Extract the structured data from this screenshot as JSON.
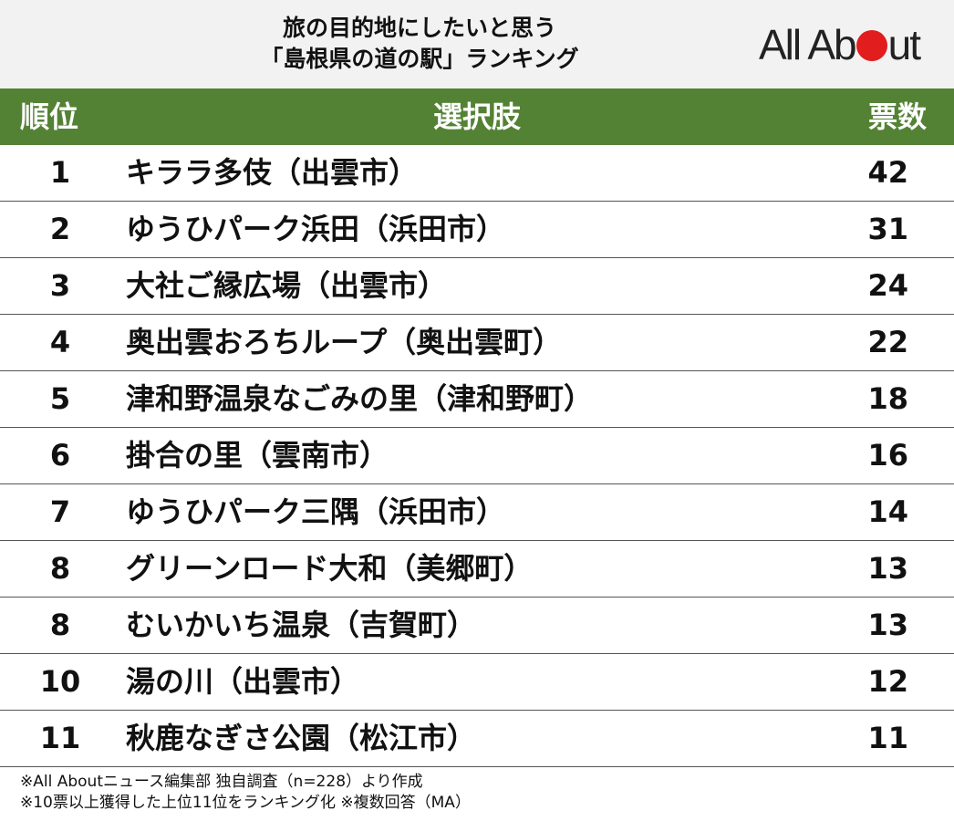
{
  "header": {
    "title_line1": "旅の目的地にしたいと思う",
    "title_line2": "「島根県の道の駅」ランキング",
    "logo_left": "All Ab",
    "logo_right": "ut",
    "logo_dot_color": "#e11d1d"
  },
  "table": {
    "headers": {
      "rank": "順位",
      "choice": "選択肢",
      "votes": "票数"
    },
    "header_color": "#548235",
    "rows": [
      {
        "rank": "1",
        "name": "キララ多伎（出雲市）",
        "votes": "42"
      },
      {
        "rank": "2",
        "name": "ゆうひパーク浜田（浜田市）",
        "votes": "31"
      },
      {
        "rank": "3",
        "name": "大社ご縁広場（出雲市）",
        "votes": "24"
      },
      {
        "rank": "4",
        "name": "奥出雲おろちループ（奥出雲町）",
        "votes": "22"
      },
      {
        "rank": "5",
        "name": "津和野温泉なごみの里（津和野町）",
        "votes": "18"
      },
      {
        "rank": "6",
        "name": "掛合の里（雲南市）",
        "votes": "16"
      },
      {
        "rank": "7",
        "name": "ゆうひパーク三隅（浜田市）",
        "votes": "14"
      },
      {
        "rank": "8",
        "name": "グリーンロード大和（美郷町）",
        "votes": "13"
      },
      {
        "rank": "8",
        "name": "むいかいち温泉（吉賀町）",
        "votes": "13"
      },
      {
        "rank": "10",
        "name": "湯の川（出雲市）",
        "votes": "12"
      },
      {
        "rank": "11",
        "name": "秋鹿なぎさ公園（松江市）",
        "votes": "11"
      }
    ]
  },
  "footer": {
    "note1": "※All Aboutニュース編集部 独自調査（n=228）より作成",
    "note2": "※10票以上獲得した上位11位をランキング化 ※複数回答（MA）"
  },
  "chart_data": {
    "type": "table",
    "title": "旅の目的地にしたいと思う「島根県の道の駅」ランキング",
    "columns": [
      "順位",
      "選択肢",
      "票数"
    ],
    "categories": [
      "キララ多伎（出雲市）",
      "ゆうひパーク浜田（浜田市）",
      "大社ご縁広場（出雲市）",
      "奥出雲おろちループ（奥出雲町）",
      "津和野温泉なごみの里（津和野町）",
      "掛合の里（雲南市）",
      "ゆうひパーク三隅（浜田市）",
      "グリーンロード大和（美郷町）",
      "むいかいち温泉（吉賀町）",
      "湯の川（出雲市）",
      "秋鹿なぎさ公園（松江市）"
    ],
    "ranks": [
      1,
      2,
      3,
      4,
      5,
      6,
      7,
      8,
      8,
      10,
      11
    ],
    "values": [
      42,
      31,
      24,
      22,
      18,
      16,
      14,
      13,
      13,
      12,
      11
    ]
  }
}
